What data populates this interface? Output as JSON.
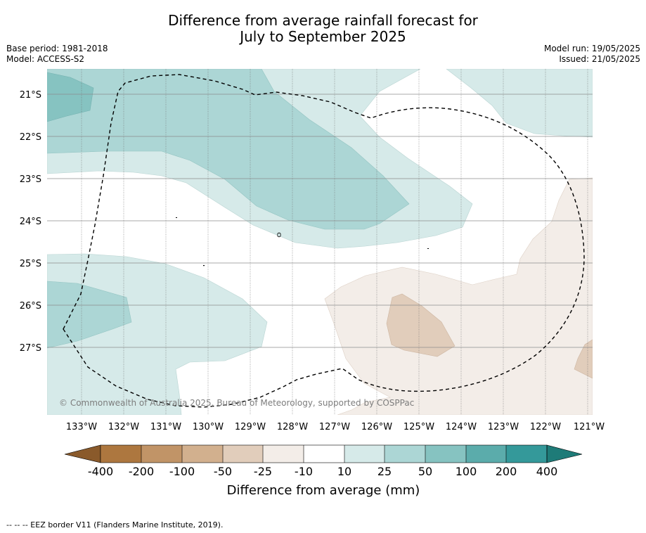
{
  "title": {
    "line1": "Difference from average rainfall forecast for",
    "line2": "July to September 2025"
  },
  "meta": {
    "base_period": "Base period: 1981-2018",
    "model": "Model: ACCESS-S2",
    "model_run": "Model run: 19/05/2025",
    "issued": "Issued: 21/05/2025"
  },
  "map": {
    "copyright": "© Commonwealth of Australia 2025, Bureau of Meteorology, supported by COSPPac",
    "lon_labels": [
      "133°W",
      "132°W",
      "131°W",
      "130°W",
      "129°W",
      "128°W",
      "127°W",
      "126°W",
      "125°W",
      "124°W",
      "123°W",
      "122°W",
      "121°W"
    ],
    "lat_labels": [
      "21°S",
      "22°S",
      "23°S",
      "24°S",
      "25°S",
      "26°S",
      "27°S"
    ]
  },
  "colorbar": {
    "title": "Difference from average (mm)",
    "tick_labels": [
      "-400",
      "-200",
      "-100",
      "-50",
      "-25",
      "-10",
      "10",
      "25",
      "50",
      "100",
      "200",
      "400"
    ],
    "colors": {
      "below_min": "#8a5a2b",
      "bins": [
        "#ad773f",
        "#c19467",
        "#d2b08e",
        "#e1cdbb",
        "#f3ede8",
        "#ffffff",
        "#d6eae9",
        "#acd6d5",
        "#86c3c1",
        "#5bacab",
        "#34999a"
      ],
      "above_max": "#1e7b78"
    }
  },
  "footnote": "--  --  -- EEZ border V11 (Flanders Marine Institute, 2019)."
}
